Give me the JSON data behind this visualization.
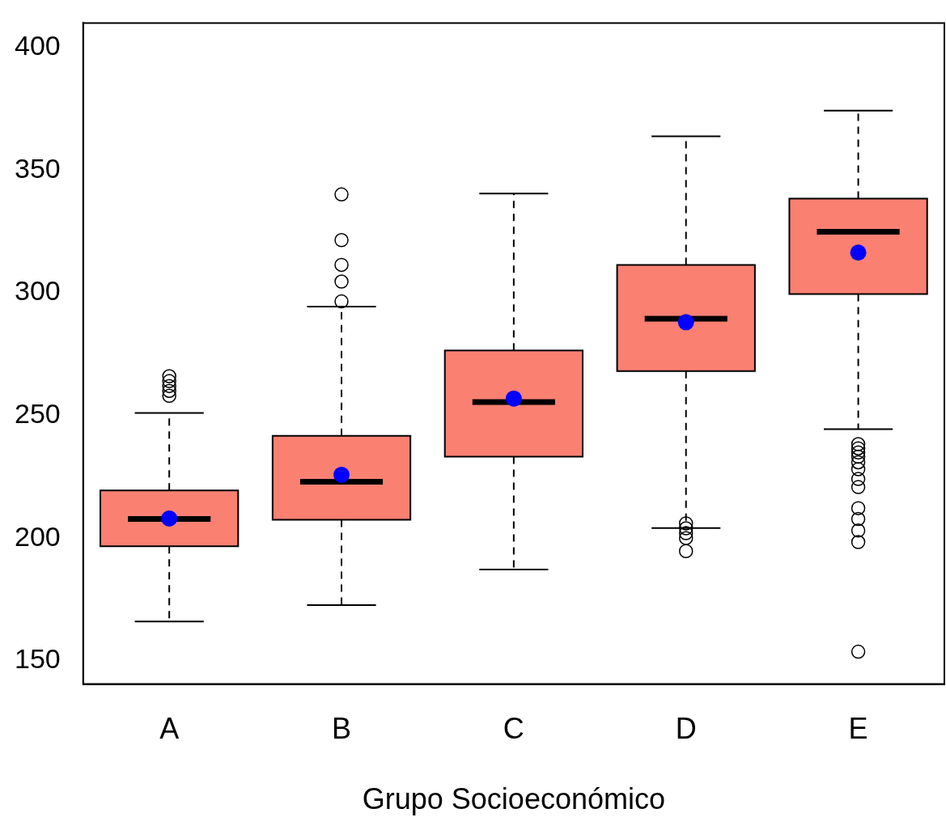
{
  "chart_data": {
    "type": "box",
    "xlabel": "Grupo Socioeconómico",
    "categories": [
      "A",
      "B",
      "C",
      "D",
      "E"
    ],
    "ylim": [
      140.5,
      410
    ],
    "yticks": [
      150,
      200,
      250,
      300,
      350,
      400
    ],
    "grid": false,
    "series": [
      {
        "color": "#fa8072",
        "boxes": [
          {
            "low": 166,
            "q1": 196.7,
            "median": 207.8,
            "q3": 219.4,
            "high": 251,
            "mean": 208,
            "outliers": [
              258,
              260,
              262,
              264,
              266
            ]
          },
          {
            "low": 172.7,
            "q1": 207.5,
            "median": 223,
            "q3": 241.7,
            "high": 294.4,
            "mean": 225.8,
            "outliers": [
              296.5,
              304.6,
              311.4,
              321.5,
              340.1
            ]
          },
          {
            "low": 187.2,
            "q1": 233.2,
            "median": 255.5,
            "q3": 276.5,
            "high": 340.5,
            "mean": 256.9
          },
          {
            "low": 204.1,
            "q1": 268.1,
            "median": 289.4,
            "q3": 311.4,
            "high": 363.8,
            "mean": 288,
            "outliers": [
              194.7,
              200,
              202,
              204,
              206
            ]
          },
          {
            "low": 244.4,
            "q1": 299.5,
            "median": 324.9,
            "q3": 338.4,
            "high": 374.3,
            "mean": 316.4,
            "outliers": [
              153.7,
              198.4,
              203.1,
              207.8,
              212.2,
              220.8,
              224.1,
              228.1,
              230.9,
              233.2,
              234.9,
              236.6,
              238.3
            ]
          }
        ]
      }
    ]
  }
}
